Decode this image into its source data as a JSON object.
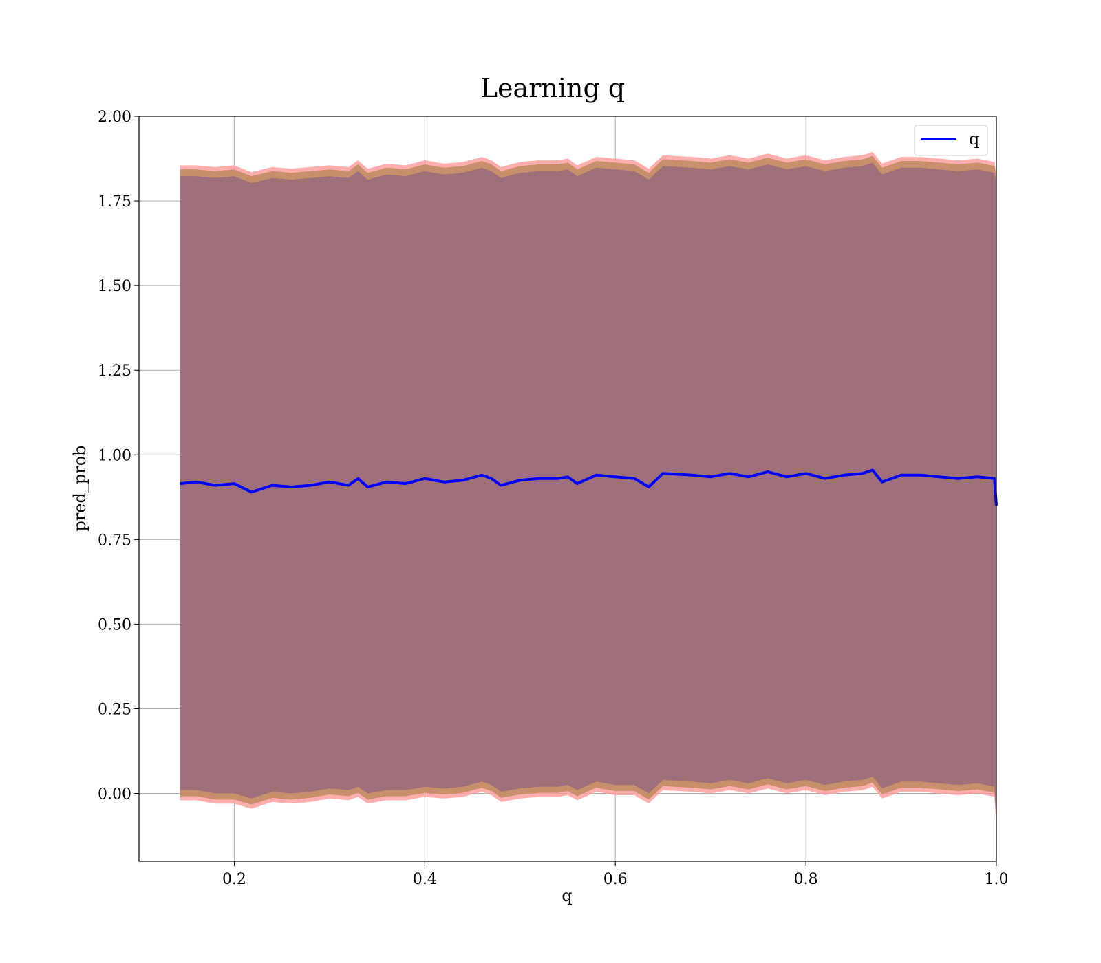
{
  "chart_data": {
    "type": "line",
    "title": "Learning q",
    "xlabel": "q",
    "ylabel": "pred_prob",
    "xlim": [
      0.1,
      1.0
    ],
    "ylim": [
      -0.2,
      2.0
    ],
    "xticks": [
      "0.2",
      "0.4",
      "0.6",
      "0.8",
      "1.0"
    ],
    "yticks": [
      "0.00",
      "0.25",
      "0.50",
      "0.75",
      "1.00",
      "1.25",
      "1.50",
      "1.75",
      "2.00"
    ],
    "grid": true,
    "legend": {
      "placement": "upper-right",
      "entries": [
        "q"
      ]
    },
    "colors": {
      "line": "#0000ff",
      "outer_band": "#ff9a9a",
      "middle_band": "#c8906a",
      "inner_band": "#a0707a"
    },
    "series": [
      {
        "name": "q",
        "x": [
          0.143,
          0.16,
          0.18,
          0.2,
          0.218,
          0.24,
          0.26,
          0.28,
          0.3,
          0.32,
          0.33,
          0.34,
          0.36,
          0.38,
          0.4,
          0.42,
          0.44,
          0.46,
          0.47,
          0.48,
          0.5,
          0.52,
          0.54,
          0.55,
          0.56,
          0.58,
          0.6,
          0.62,
          0.635,
          0.65,
          0.68,
          0.7,
          0.72,
          0.74,
          0.76,
          0.78,
          0.8,
          0.82,
          0.84,
          0.86,
          0.87,
          0.88,
          0.9,
          0.92,
          0.94,
          0.96,
          0.98,
          0.998,
          1.0
        ],
        "values": [
          0.915,
          0.92,
          0.91,
          0.915,
          0.89,
          0.91,
          0.905,
          0.91,
          0.92,
          0.91,
          0.93,
          0.905,
          0.92,
          0.915,
          0.93,
          0.92,
          0.925,
          0.94,
          0.93,
          0.91,
          0.925,
          0.93,
          0.93,
          0.935,
          0.915,
          0.94,
          0.935,
          0.93,
          0.905,
          0.945,
          0.94,
          0.935,
          0.945,
          0.935,
          0.95,
          0.935,
          0.945,
          0.93,
          0.94,
          0.945,
          0.955,
          0.92,
          0.94,
          0.94,
          0.935,
          0.93,
          0.935,
          0.93,
          0.85
        ],
        "lower": [
          -0.02,
          -0.02,
          -0.03,
          -0.03,
          -0.045,
          -0.025,
          -0.03,
          -0.025,
          -0.015,
          -0.02,
          -0.01,
          -0.03,
          -0.02,
          -0.02,
          -0.01,
          -0.015,
          -0.01,
          0.005,
          -0.005,
          -0.025,
          -0.015,
          -0.01,
          -0.01,
          -0.005,
          -0.02,
          0.005,
          -0.005,
          -0.005,
          -0.03,
          0.01,
          0.005,
          0.0,
          0.01,
          0.0,
          0.015,
          0.0,
          0.01,
          -0.005,
          0.005,
          0.01,
          0.02,
          -0.015,
          0.005,
          0.005,
          0.0,
          -0.005,
          0.0,
          -0.01,
          -0.1
        ],
        "upper": [
          1.855,
          1.855,
          1.85,
          1.855,
          1.835,
          1.85,
          1.845,
          1.85,
          1.855,
          1.85,
          1.87,
          1.845,
          1.86,
          1.855,
          1.87,
          1.86,
          1.865,
          1.88,
          1.87,
          1.85,
          1.865,
          1.87,
          1.87,
          1.875,
          1.855,
          1.88,
          1.875,
          1.87,
          1.845,
          1.885,
          1.88,
          1.875,
          1.885,
          1.875,
          1.89,
          1.875,
          1.885,
          1.87,
          1.88,
          1.885,
          1.895,
          1.86,
          1.88,
          1.88,
          1.875,
          1.87,
          1.875,
          1.865,
          1.835
        ]
      }
    ]
  }
}
